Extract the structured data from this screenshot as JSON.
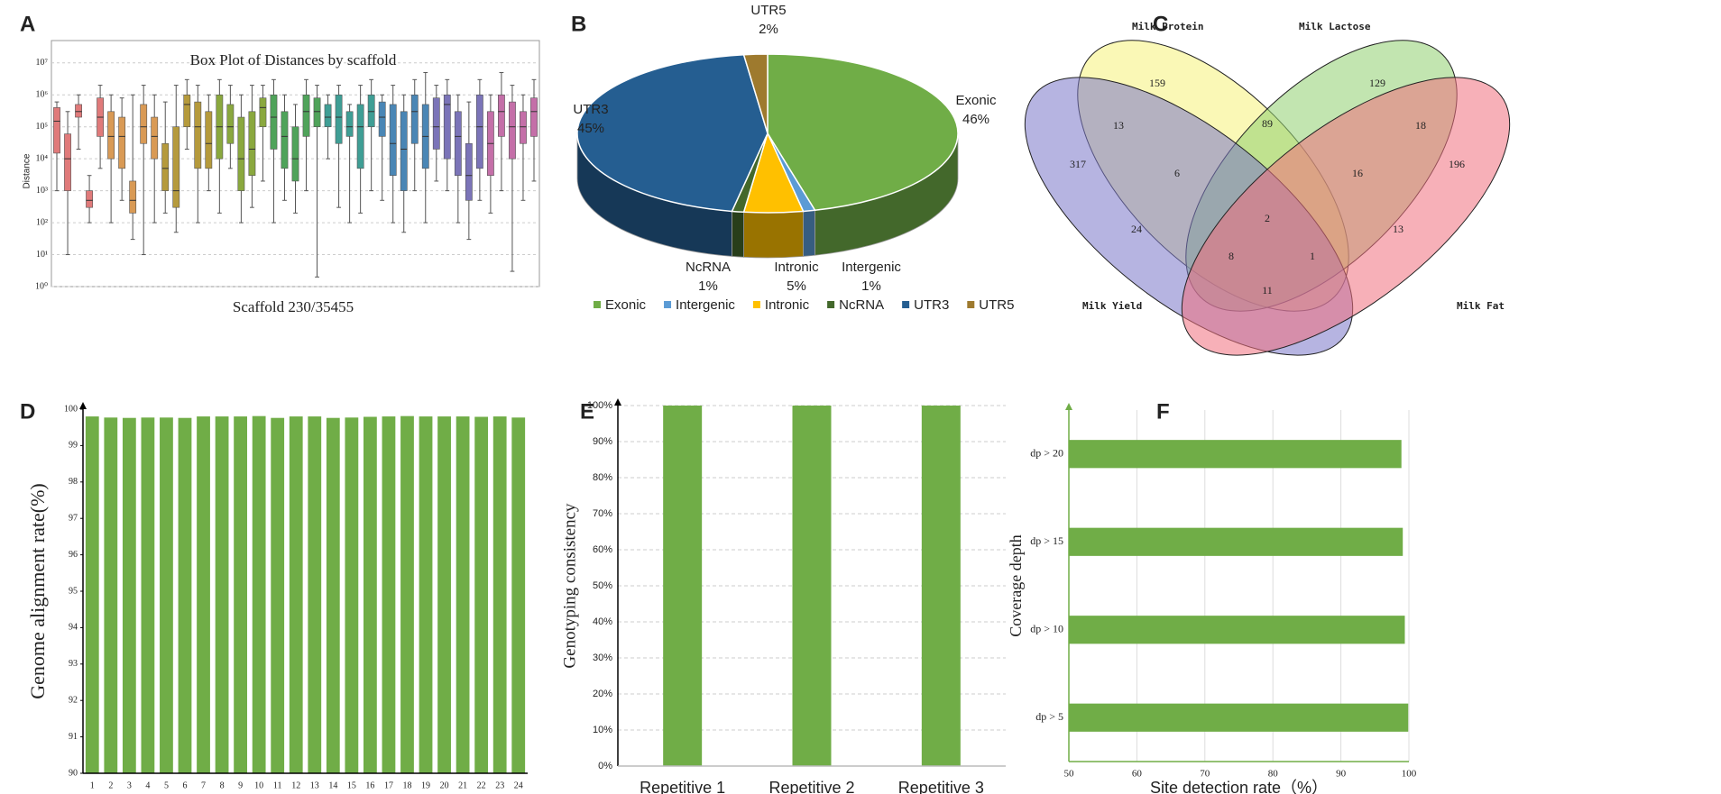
{
  "chart_data": [
    {
      "panel": "A",
      "type": "box",
      "title": "Box Plot of Distances by scaffold",
      "xlabel": "Scaffold 230/35455",
      "ylabel": "Distance",
      "log_y": true,
      "ylim": [
        1,
        50000000
      ],
      "yticks": [
        {
          "value": 1,
          "label": "10⁰"
        },
        {
          "value": 10,
          "label": "10¹"
        },
        {
          "value": 100,
          "label": "10²"
        },
        {
          "value": 1000,
          "label": "10³"
        },
        {
          "value": 10000,
          "label": "10⁴"
        },
        {
          "value": 100000,
          "label": "10⁵"
        },
        {
          "value": 1000000,
          "label": "10⁶"
        },
        {
          "value": 10000000,
          "label": "10⁷"
        }
      ],
      "grid": true,
      "colors": [
        "#e07a7a",
        "#d99a55",
        "#b59a3c",
        "#8aa83e",
        "#4fa35a",
        "#3f9e95",
        "#4a86b5",
        "#7b74b8",
        "#c46fa8"
      ],
      "boxes": [
        [
          1000,
          15000,
          150000,
          400000,
          600000
        ],
        [
          10,
          1000,
          10000,
          60000,
          300000
        ],
        [
          20000,
          200000,
          300000,
          500000,
          1000000
        ],
        [
          100,
          300,
          500,
          1000,
          3000
        ],
        [
          5000,
          50000,
          200000,
          800000,
          2000000
        ],
        [
          100,
          10000,
          50000,
          300000,
          1000000
        ],
        [
          500,
          5000,
          50000,
          200000,
          800000
        ],
        [
          30,
          200,
          500,
          2000,
          1000000
        ],
        [
          10,
          30000,
          100000,
          500000,
          2000000
        ],
        [
          100,
          10000,
          50000,
          200000,
          1000000
        ],
        [
          200,
          1000,
          5000,
          30000,
          600000
        ],
        [
          50,
          300,
          1000,
          100000,
          2000000
        ],
        [
          20000,
          100000,
          500000,
          1000000,
          3000000
        ],
        [
          100,
          5000,
          100000,
          600000,
          2000000
        ],
        [
          1000,
          5000,
          30000,
          300000,
          1000000
        ],
        [
          200,
          10000,
          100000,
          1000000,
          3000000
        ],
        [
          5000,
          30000,
          100000,
          500000,
          2000000
        ],
        [
          100,
          1000,
          10000,
          200000,
          1000000
        ],
        [
          300,
          3000,
          20000,
          300000,
          2000000
        ],
        [
          2000,
          100000,
          400000,
          800000,
          2000000
        ],
        [
          100,
          20000,
          200000,
          1000000,
          3000000
        ],
        [
          500,
          5000,
          50000,
          300000,
          1000000
        ],
        [
          200,
          2000,
          10000,
          100000,
          500000
        ],
        [
          1000,
          50000,
          300000,
          1000000,
          3000000
        ],
        [
          2,
          100000,
          300000,
          800000,
          2000000
        ],
        [
          10000,
          100000,
          200000,
          500000,
          1000000
        ],
        [
          300,
          30000,
          200000,
          1000000,
          2000000
        ],
        [
          100,
          50000,
          100000,
          300000,
          500000
        ],
        [
          200,
          5000,
          100000,
          500000,
          2000000
        ],
        [
          1000,
          100000,
          300000,
          1000000,
          3000000
        ],
        [
          500,
          50000,
          200000,
          600000,
          1000000
        ],
        [
          100,
          3000,
          30000,
          500000,
          2000000
        ],
        [
          50,
          1000,
          20000,
          300000,
          1000000
        ],
        [
          1000,
          30000,
          300000,
          1000000,
          3000000
        ],
        [
          100,
          5000,
          50000,
          500000,
          5000000
        ],
        [
          2000,
          20000,
          100000,
          800000,
          2000000
        ],
        [
          1000,
          10000,
          500000,
          1000000,
          3000000
        ],
        [
          100,
          3000,
          50000,
          300000,
          1000000
        ],
        [
          30,
          500,
          3000,
          30000,
          600000
        ],
        [
          500,
          5000,
          100000,
          1000000,
          3000000
        ],
        [
          200,
          3000,
          30000,
          300000,
          1000000
        ],
        [
          1000,
          50000,
          300000,
          1000000,
          5000000
        ],
        [
          3,
          10000,
          100000,
          600000,
          2000000
        ],
        [
          500,
          30000,
          100000,
          300000,
          1000000
        ],
        [
          2000,
          50000,
          300000,
          800000,
          3000000
        ]
      ]
    },
    {
      "panel": "B",
      "type": "pie3d",
      "categories": [
        "Exonic",
        "Intergenic",
        "Intronic",
        "NcRNA",
        "UTR3",
        "UTR5"
      ],
      "values": [
        46,
        1,
        5,
        1,
        45,
        2
      ],
      "value_labels": [
        "46%",
        "1%",
        "5%",
        "1%",
        "45%",
        "2%"
      ],
      "colors": [
        "#70ad47",
        "#5b9bd5",
        "#ffc000",
        "#43682b",
        "#255e91",
        "#9e7a2e"
      ],
      "legend": "bottom"
    },
    {
      "panel": "C",
      "type": "venn",
      "sets": [
        {
          "name": "Milk Protein",
          "color": "#f6f27a",
          "label_color": "#9a9638"
        },
        {
          "name": "Milk Lactose",
          "color": "#8fcf6f",
          "label_color": "#3f9a3f"
        },
        {
          "name": "Milk Yield",
          "color": "#7a76c8",
          "label_color": "#5a5aa8"
        },
        {
          "name": "Milk Fat",
          "color": "#f0707e",
          "label_color": "#d04050"
        }
      ],
      "counts": [
        159,
        129,
        317,
        196,
        13,
        89,
        18,
        6,
        16,
        2,
        24,
        13,
        8,
        1,
        11
      ]
    },
    {
      "panel": "D",
      "type": "bar",
      "ylabel": "Genome alignment rate(%)",
      "categories": [
        "1",
        "2",
        "3",
        "4",
        "5",
        "6",
        "7",
        "8",
        "9",
        "10",
        "11",
        "12",
        "13",
        "14",
        "15",
        "16",
        "17",
        "18",
        "19",
        "20",
        "21",
        "22",
        "23",
        "24"
      ],
      "values": [
        99.8,
        99.77,
        99.76,
        99.77,
        99.77,
        99.76,
        99.8,
        99.8,
        99.8,
        99.81,
        99.76,
        99.8,
        99.8,
        99.76,
        99.77,
        99.79,
        99.8,
        99.81,
        99.8,
        99.8,
        99.8,
        99.79,
        99.8,
        99.77
      ],
      "color": "#70ad47",
      "ylim": [
        90,
        100
      ],
      "yticks": [
        90,
        91,
        92,
        93,
        94,
        95,
        96,
        97,
        98,
        99,
        100
      ],
      "grid": false
    },
    {
      "panel": "E",
      "type": "bar",
      "ylabel": "Genotyping consistency",
      "categories": [
        "Repetitive 1",
        "Repetitive 2",
        "Repetitive 3"
      ],
      "values": [
        100,
        100,
        100
      ],
      "color": "#70ad47",
      "ylim": [
        0,
        100
      ],
      "yticks": [
        {
          "value": 0,
          "label": "0%"
        },
        {
          "value": 10,
          "label": "10%"
        },
        {
          "value": 20,
          "label": "20%"
        },
        {
          "value": 30,
          "label": "30%"
        },
        {
          "value": 40,
          "label": "40%"
        },
        {
          "value": 50,
          "label": "50%"
        },
        {
          "value": 60,
          "label": "60%"
        },
        {
          "value": 70,
          "label": "70%"
        },
        {
          "value": 80,
          "label": "80%"
        },
        {
          "value": 90,
          "label": "90%"
        },
        {
          "value": 100,
          "label": "100%"
        }
      ],
      "grid": true
    },
    {
      "panel": "F",
      "type": "hbar",
      "xlabel": "Site detection rate（%）",
      "ylabel": "Coverage depth",
      "categories": [
        "dp > 5",
        "dp > 10",
        "dp > 15",
        "dp > 20"
      ],
      "values": [
        99.9,
        99.4,
        99.1,
        98.9
      ],
      "color": "#70ad47",
      "xlim": [
        50,
        100
      ],
      "xticks": [
        50,
        60,
        70,
        80,
        90,
        100
      ],
      "grid": true
    }
  ]
}
